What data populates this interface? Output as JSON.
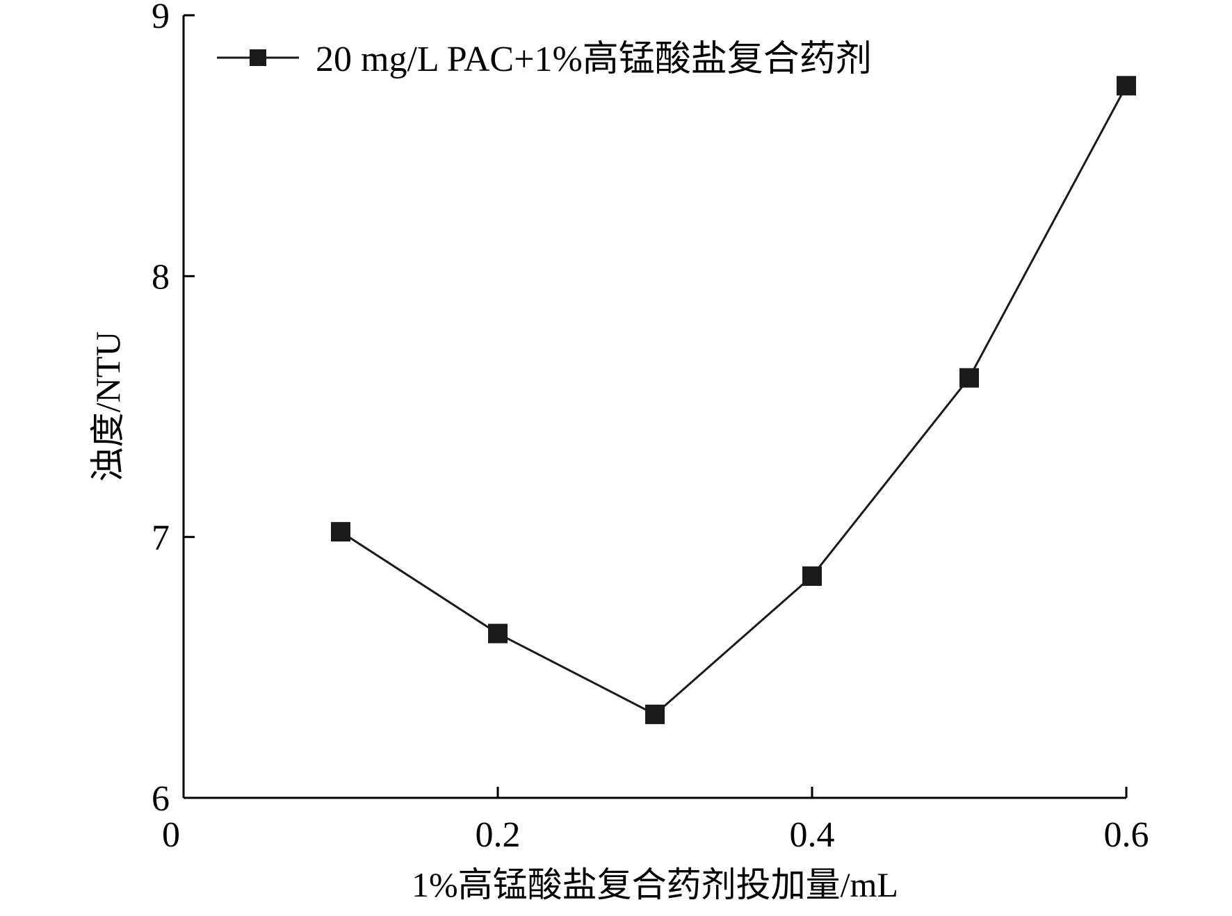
{
  "chart_data": {
    "type": "line",
    "title": "",
    "xlabel": "1%高锰酸盐复合药剂投加量/mL",
    "ylabel": "浊度/NTU",
    "xlim": [
      0,
      0.6
    ],
    "ylim": [
      6,
      9
    ],
    "x_ticks": [
      0,
      0.2,
      0.4,
      0.6
    ],
    "x_tick_labels": [
      "0",
      "0.2",
      "0.4",
      "0.6"
    ],
    "y_ticks": [
      6,
      7,
      8,
      9
    ],
    "y_tick_labels": [
      "6",
      "7",
      "8",
      "9"
    ],
    "grid": false,
    "legend_position": "top-left",
    "series": [
      {
        "name": "20 mg/L PAC+1%高锰酸盐复合药剂",
        "marker": "square",
        "color": "#1a1a1a",
        "x": [
          0.1,
          0.2,
          0.3,
          0.4,
          0.5,
          0.6
        ],
        "y": [
          7.02,
          6.63,
          6.32,
          6.85,
          7.61,
          8.73
        ]
      }
    ]
  }
}
